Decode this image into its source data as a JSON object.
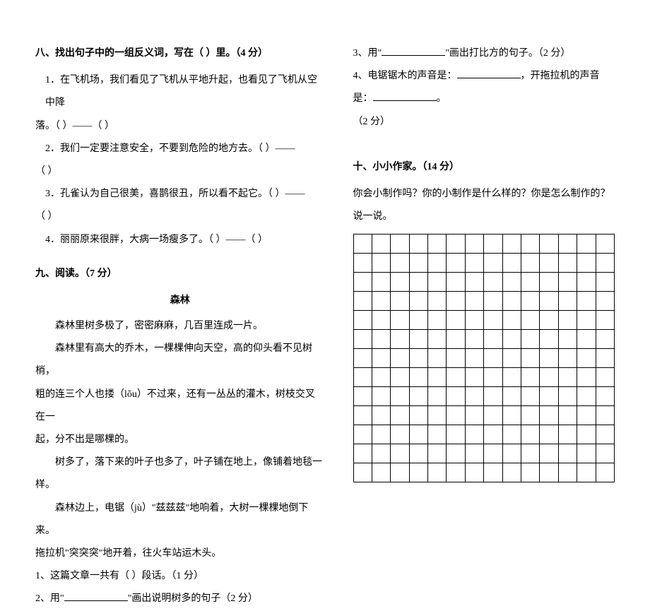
{
  "left": {
    "s8": {
      "heading": "八、找出句子中的一组反义词，写在（  ）里。（4 分）",
      "q1a": "1．在飞机场，我们看见了飞机从平地升起，也看见了飞机从空中降",
      "q1b": "落。（          ）——（          ）",
      "q2a": "2．我们一定要注意安全，不要到危险的地方去。（          ）——",
      "q2b": "（          ）",
      "q3a": "3．孔雀认为自己很美，喜鹊很丑，所以看不起它。（          ）——",
      "q3b": "（          ）",
      "q4": "4．丽丽原来很胖，大病一场瘦多了。（          ）——（          ）"
    },
    "s9": {
      "heading": "九、阅读。（7 分）",
      "title": "森林",
      "p1": "森林里树多极了，密密麻麻，几百里连成一片。",
      "p2a": "森林里有高大的乔木，一棵棵伸向天空，高的仰头看不见树梢，",
      "p2b": "粗的连三个人也搂（lǒu）不过来，还有一丛丛的灌木，树枝交叉在一",
      "p2c": "起，分不出是哪棵的。",
      "p3": "树多了，落下来的叶子也多了，叶子铺在地上，像铺着地毯一样。",
      "p4a": "森林边上，电锯（jù）\"兹兹兹\"地响着，大树一棵棵地倒下来。",
      "p4b": "拖拉机\"突突突\"地开着，往火车站运木头。",
      "q1": "1、这篇文章一共有（     ）段话。（1 分）",
      "q2a": "2、用\"",
      "q2b": "\"画出说明树多的句子（2 分）"
    }
  },
  "right": {
    "q3a": "3、用\"",
    "q3b": "\"画出打比方的句子。（2 分）",
    "q4a": "4、电锯锯木的声音是：",
    "q4b": "，开拖拉机的声音是：",
    "q4c": "。",
    "q4pts": "（2 分）",
    "s10": {
      "heading": "十、小小作家。（14 分）",
      "prompt": "你会小制作吗？你的小制作是什么样的？你是怎么制作的？说一说。"
    },
    "grid": {
      "rows": 13,
      "cols": 14
    }
  },
  "colors": {
    "text": "#000000",
    "bg": "#ffffff",
    "border": "#000000"
  }
}
